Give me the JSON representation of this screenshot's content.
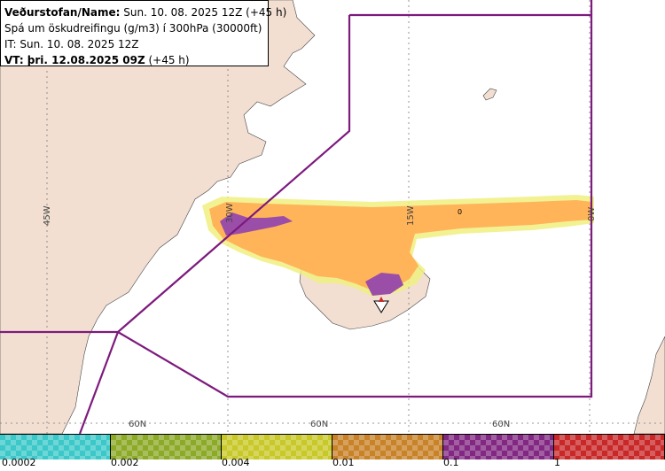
{
  "header": {
    "line1_label": "Veðurstofan/Name:",
    "line1_value": "Sun. 10. 08. 2025 12Z (+45 h)",
    "line2": "Spá um öskudreifingu (g/m3) í 300hPa (30000ft)",
    "line3": "IT: Sun. 10. 08. 2025 12Z",
    "line4_label": "VT: þri. 12.08.2025 09Z",
    "line4_value": "(+45 h)"
  },
  "grid_labels": {
    "lon_45w": "45W",
    "lon_30w": "30W",
    "lon_15w": "15W",
    "lon_0w": "0W",
    "lat_60n_a": "60N",
    "lat_60n_b": "60N",
    "lat_60n_c": "60N",
    "zero_marker": "0"
  },
  "legend": {
    "labels": [
      "0.0002",
      "0.002",
      "0.004",
      "0.01",
      "0.1",
      "1"
    ],
    "colors": [
      "#3cc8c8",
      "#8caa28",
      "#c8c828",
      "#c88228",
      "#822882",
      "#c82828"
    ]
  },
  "colors": {
    "land": "#f2dfd2",
    "sea": "#ffffff",
    "ash_outer": "#f0f080",
    "ash_main": "#ffb45a",
    "ash_high": "#9b4ea8",
    "boundary": "#7d1a7d",
    "grid": "#7a7a7a"
  }
}
